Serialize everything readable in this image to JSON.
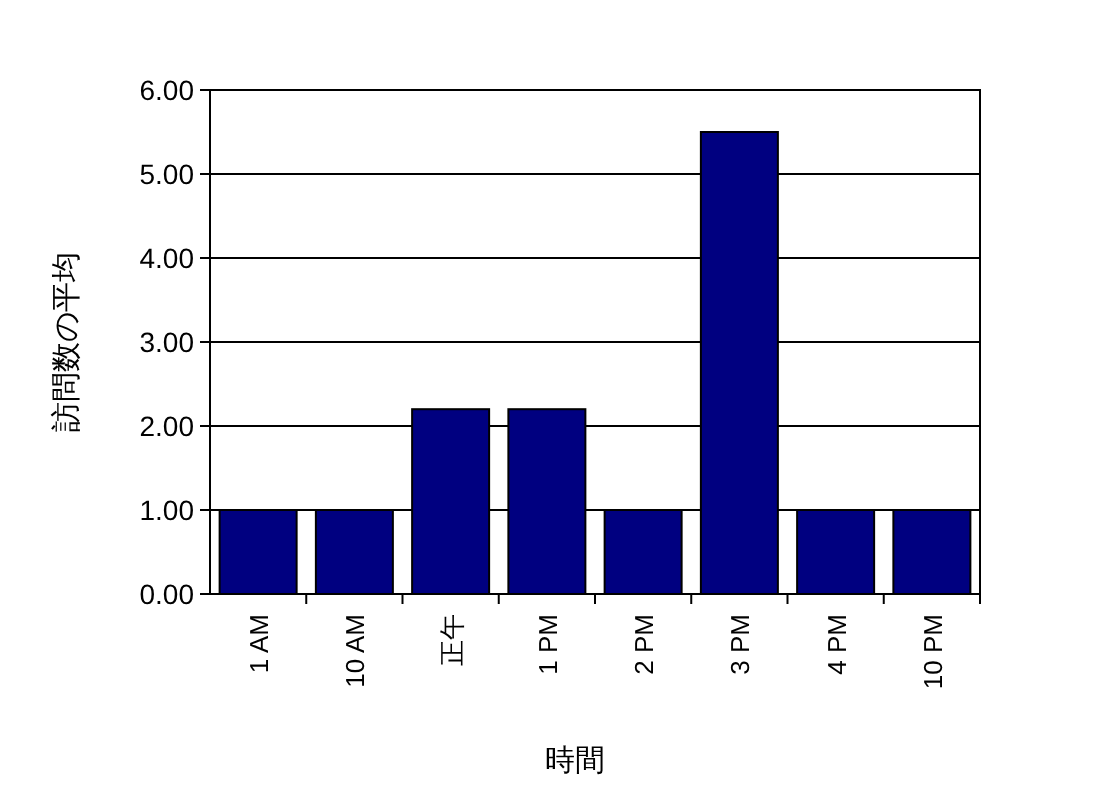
{
  "chart_data": {
    "type": "bar",
    "xlabel": "時間",
    "ylabel": "訪問数の平均",
    "categories": [
      "1 AM",
      "10 AM",
      "正午",
      "1 PM",
      "2 PM",
      "3 PM",
      "4 PM",
      "10 PM"
    ],
    "values": [
      1,
      1,
      2.2,
      2.2,
      1,
      5.5,
      1,
      1
    ],
    "color": "#000080",
    "ylim": [
      0,
      6
    ],
    "yticks": [
      {
        "value": 0,
        "label": "0.00"
      },
      {
        "value": 1,
        "label": "1.00"
      },
      {
        "value": 2,
        "label": "2.00"
      },
      {
        "value": 3,
        "label": "3.00"
      },
      {
        "value": 4,
        "label": "4.00"
      },
      {
        "value": 5,
        "label": "5.00"
      },
      {
        "value": 6,
        "label": "6.00"
      }
    ],
    "grid": "y"
  }
}
